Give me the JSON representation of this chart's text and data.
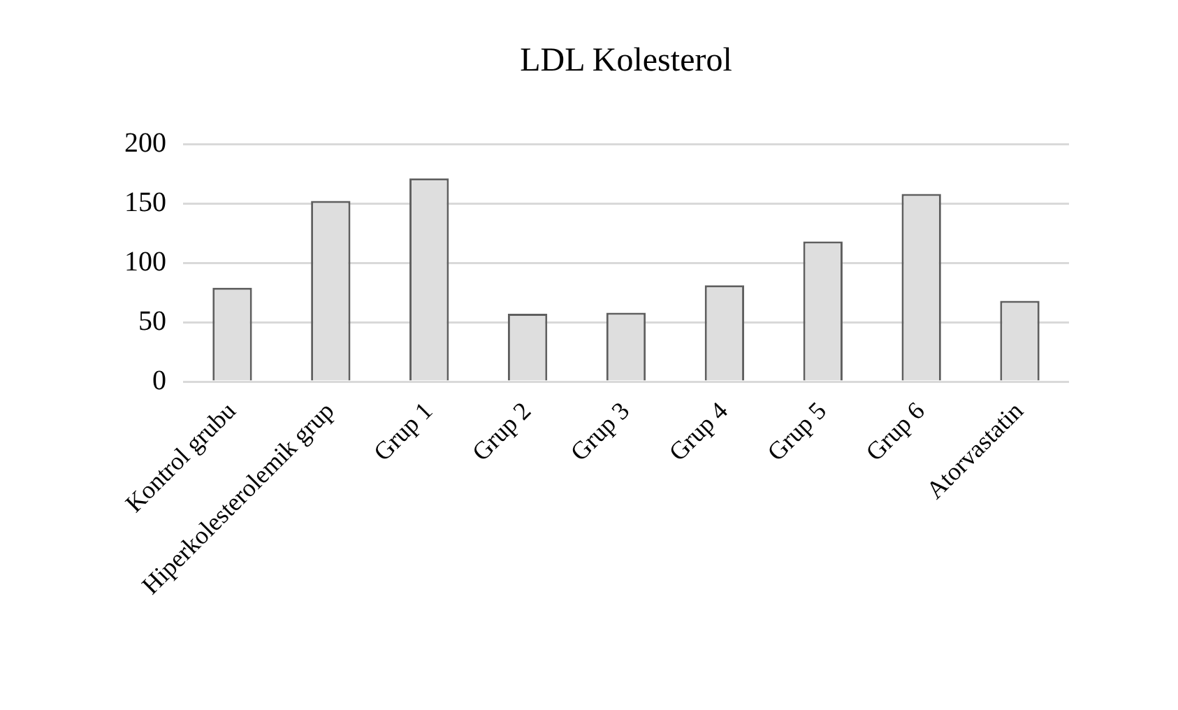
{
  "chart_data": {
    "type": "bar",
    "title": "LDL Kolesterol",
    "categories": [
      "Kontrol grubu",
      "Hiperkolesterolemik grup",
      "Grup 1",
      "Grup 2",
      "Grup 3",
      "Grup 4",
      "Grup 5",
      "Grup 6",
      "Atorvastatin"
    ],
    "values": [
      79,
      152,
      171,
      57,
      58,
      81,
      118,
      158,
      68
    ],
    "color": "#dedede",
    "ylim": [
      0,
      200
    ],
    "yticks": [
      0,
      50,
      100,
      150,
      200
    ],
    "grid": "y",
    "legend": false
  }
}
